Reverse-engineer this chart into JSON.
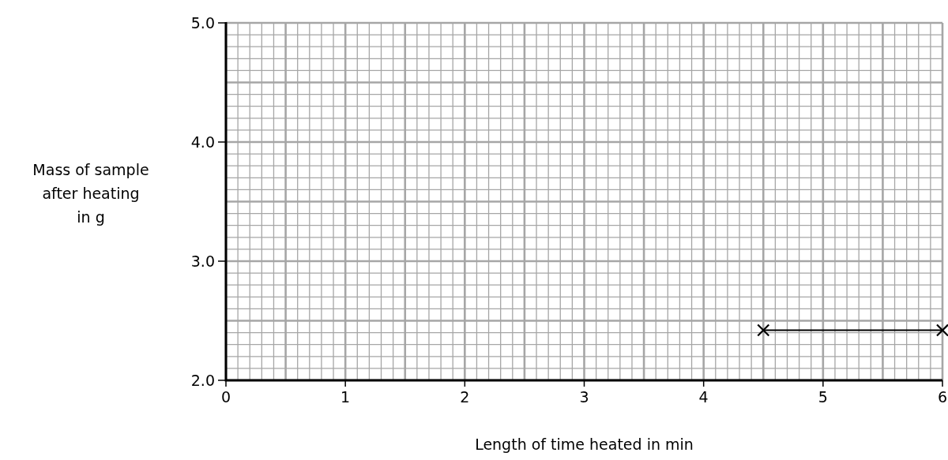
{
  "chart_data": {
    "type": "line",
    "xlabel": "Length of time heated in min",
    "ylabel": "Mass of sample after heating in g",
    "x": [
      4.5,
      6
    ],
    "series": [
      {
        "color": "#000000",
        "values": [
          2.42,
          2.42
        ]
      }
    ],
    "xlim": [
      0,
      6
    ],
    "xticks": [
      0,
      1,
      2,
      3,
      4,
      5,
      6
    ],
    "ylim": [
      2,
      5
    ],
    "yticks": [
      {
        "value": 2,
        "label": "2.0"
      },
      {
        "value": 3,
        "label": "3.0"
      },
      {
        "value": 4,
        "label": "4.0"
      },
      {
        "value": 5,
        "label": "5.0"
      }
    ],
    "grid": true,
    "marker": "cross",
    "line_style": "solid"
  }
}
